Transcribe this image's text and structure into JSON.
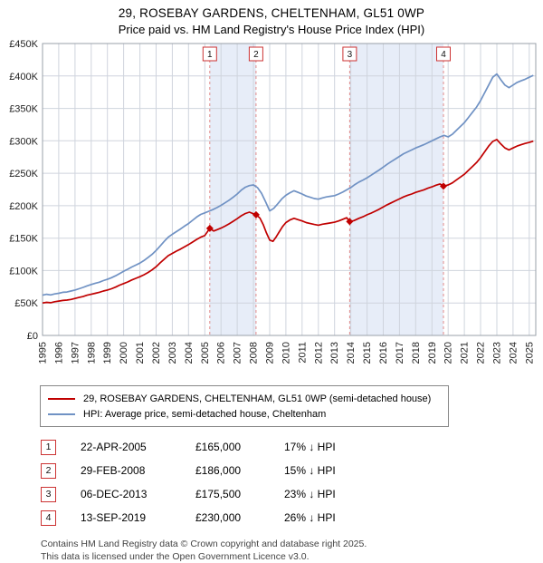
{
  "title": "29, ROSEBAY GARDENS, CHELTENHAM, GL51 0WP",
  "subtitle": "Price paid vs. HM Land Registry's House Price Index (HPI)",
  "chart_data": {
    "type": "line",
    "xlim": [
      1995,
      2025.4
    ],
    "ylim": [
      0,
      450000
    ],
    "y_step": 50000,
    "grid": true,
    "legend_position": "below",
    "y_ticks": [
      "£0",
      "£50K",
      "£100K",
      "£150K",
      "£200K",
      "£250K",
      "£300K",
      "£350K",
      "£400K",
      "£450K"
    ],
    "x_ticks": [
      1995,
      1996,
      1997,
      1998,
      1999,
      2000,
      2001,
      2002,
      2003,
      2004,
      2005,
      2006,
      2007,
      2008,
      2009,
      2010,
      2011,
      2012,
      2013,
      2014,
      2015,
      2016,
      2017,
      2018,
      2019,
      2020,
      2021,
      2022,
      2023,
      2024,
      2025
    ],
    "colors": {
      "property": "#c00000",
      "hpi": "#7092c4",
      "band": "#e7edf8",
      "grid": "#cfd4dd",
      "sale_line": "#e08a8a",
      "border": "#9aa0a8",
      "sale_box_border": "#cc3333"
    },
    "bands": [
      [
        2005.31,
        2008.16
      ],
      [
        2013.93,
        2019.71
      ]
    ],
    "series": [
      {
        "name": "29, ROSEBAY GARDENS, CHELTENHAM, GL51 0WP (semi-detached house)",
        "color_ref": "property",
        "points": [
          [
            1995.0,
            50000
          ],
          [
            1995.25,
            51000
          ],
          [
            1995.5,
            50500
          ],
          [
            1995.75,
            52000
          ],
          [
            1996.0,
            53000
          ],
          [
            1996.25,
            54000
          ],
          [
            1996.5,
            54500
          ],
          [
            1996.75,
            55500
          ],
          [
            1997.0,
            57000
          ],
          [
            1997.25,
            58500
          ],
          [
            1997.5,
            60000
          ],
          [
            1997.75,
            62000
          ],
          [
            1998.0,
            63500
          ],
          [
            1998.25,
            65000
          ],
          [
            1998.5,
            66500
          ],
          [
            1998.75,
            68500
          ],
          [
            1999.0,
            70000
          ],
          [
            1999.25,
            72000
          ],
          [
            1999.5,
            74500
          ],
          [
            1999.75,
            77500
          ],
          [
            2000.0,
            80000
          ],
          [
            2000.25,
            82500
          ],
          [
            2000.5,
            85500
          ],
          [
            2000.75,
            88000
          ],
          [
            2001.0,
            90500
          ],
          [
            2001.25,
            93500
          ],
          [
            2001.5,
            97000
          ],
          [
            2001.75,
            101000
          ],
          [
            2002.0,
            106000
          ],
          [
            2002.25,
            112000
          ],
          [
            2002.5,
            117500
          ],
          [
            2002.75,
            123000
          ],
          [
            2003.0,
            126500
          ],
          [
            2003.25,
            130000
          ],
          [
            2003.5,
            133000
          ],
          [
            2003.75,
            136500
          ],
          [
            2004.0,
            140000
          ],
          [
            2004.25,
            144000
          ],
          [
            2004.5,
            148000
          ],
          [
            2004.75,
            151500
          ],
          [
            2005.0,
            154000
          ],
          [
            2005.31,
            165000
          ],
          [
            2005.55,
            161000
          ],
          [
            2005.75,
            163000
          ],
          [
            2006.0,
            165500
          ],
          [
            2006.25,
            168500
          ],
          [
            2006.5,
            172000
          ],
          [
            2006.75,
            176000
          ],
          [
            2007.0,
            180000
          ],
          [
            2007.25,
            184500
          ],
          [
            2007.5,
            188000
          ],
          [
            2007.75,
            190000
          ],
          [
            2008.16,
            186000
          ],
          [
            2008.4,
            181000
          ],
          [
            2008.6,
            171000
          ],
          [
            2008.8,
            158000
          ],
          [
            2009.0,
            147000
          ],
          [
            2009.2,
            145000
          ],
          [
            2009.4,
            152000
          ],
          [
            2009.6,
            160000
          ],
          [
            2009.8,
            168000
          ],
          [
            2010.0,
            174000
          ],
          [
            2010.25,
            178000
          ],
          [
            2010.5,
            180500
          ],
          [
            2010.75,
            178500
          ],
          [
            2011.0,
            176500
          ],
          [
            2011.25,
            174000
          ],
          [
            2011.5,
            172500
          ],
          [
            2011.75,
            171000
          ],
          [
            2012.0,
            170000
          ],
          [
            2012.25,
            171500
          ],
          [
            2012.5,
            172500
          ],
          [
            2012.75,
            173500
          ],
          [
            2013.0,
            174500
          ],
          [
            2013.25,
            176500
          ],
          [
            2013.5,
            179000
          ],
          [
            2013.75,
            181500
          ],
          [
            2013.93,
            175500
          ],
          [
            2014.2,
            177000
          ],
          [
            2014.5,
            180500
          ],
          [
            2014.75,
            183000
          ],
          [
            2015.0,
            186000
          ],
          [
            2015.25,
            188500
          ],
          [
            2015.5,
            191500
          ],
          [
            2015.75,
            194500
          ],
          [
            2016.0,
            198000
          ],
          [
            2016.25,
            201500
          ],
          [
            2016.5,
            204500
          ],
          [
            2016.75,
            207500
          ],
          [
            2017.0,
            210500
          ],
          [
            2017.25,
            213500
          ],
          [
            2017.5,
            216000
          ],
          [
            2017.75,
            218000
          ],
          [
            2018.0,
            220500
          ],
          [
            2018.25,
            222500
          ],
          [
            2018.5,
            224500
          ],
          [
            2018.75,
            227000
          ],
          [
            2019.0,
            229000
          ],
          [
            2019.25,
            231500
          ],
          [
            2019.5,
            233500
          ],
          [
            2019.71,
            230000
          ],
          [
            2020.0,
            232000
          ],
          [
            2020.25,
            235000
          ],
          [
            2020.5,
            239500
          ],
          [
            2020.75,
            244000
          ],
          [
            2021.0,
            248500
          ],
          [
            2021.25,
            254500
          ],
          [
            2021.5,
            260500
          ],
          [
            2021.75,
            266500
          ],
          [
            2022.0,
            274000
          ],
          [
            2022.25,
            283000
          ],
          [
            2022.5,
            292000
          ],
          [
            2022.75,
            299000
          ],
          [
            2023.0,
            302000
          ],
          [
            2023.25,
            295000
          ],
          [
            2023.5,
            289000
          ],
          [
            2023.75,
            286000
          ],
          [
            2024.0,
            289000
          ],
          [
            2024.25,
            292000
          ],
          [
            2024.5,
            294000
          ],
          [
            2024.75,
            296000
          ],
          [
            2025.0,
            297500
          ],
          [
            2025.25,
            299500
          ]
        ]
      },
      {
        "name": "HPI: Average price, semi-detached house, Cheltenham",
        "color_ref": "hpi",
        "points": [
          [
            1995.0,
            62000
          ],
          [
            1995.25,
            63500
          ],
          [
            1995.5,
            62500
          ],
          [
            1995.75,
            64000
          ],
          [
            1996.0,
            65000
          ],
          [
            1996.25,
            66500
          ],
          [
            1996.5,
            67000
          ],
          [
            1996.75,
            68500
          ],
          [
            1997.0,
            70000
          ],
          [
            1997.25,
            72000
          ],
          [
            1997.5,
            74000
          ],
          [
            1997.75,
            76500
          ],
          [
            1998.0,
            78500
          ],
          [
            1998.25,
            80500
          ],
          [
            1998.5,
            82000
          ],
          [
            1998.75,
            84500
          ],
          [
            1999.0,
            86500
          ],
          [
            1999.25,
            89000
          ],
          [
            1999.5,
            92000
          ],
          [
            1999.75,
            95500
          ],
          [
            2000.0,
            99000
          ],
          [
            2000.25,
            102000
          ],
          [
            2000.5,
            105500
          ],
          [
            2000.75,
            108500
          ],
          [
            2001.0,
            111500
          ],
          [
            2001.25,
            115500
          ],
          [
            2001.5,
            120000
          ],
          [
            2001.75,
            125000
          ],
          [
            2002.0,
            131000
          ],
          [
            2002.25,
            138000
          ],
          [
            2002.5,
            145000
          ],
          [
            2002.75,
            151500
          ],
          [
            2003.0,
            156000
          ],
          [
            2003.25,
            160000
          ],
          [
            2003.5,
            164000
          ],
          [
            2003.75,
            168500
          ],
          [
            2004.0,
            172500
          ],
          [
            2004.25,
            177500
          ],
          [
            2004.5,
            182500
          ],
          [
            2004.75,
            186500
          ],
          [
            2005.0,
            189000
          ],
          [
            2005.25,
            191500
          ],
          [
            2005.5,
            194000
          ],
          [
            2005.75,
            197000
          ],
          [
            2006.0,
            200500
          ],
          [
            2006.25,
            204500
          ],
          [
            2006.5,
            208500
          ],
          [
            2006.75,
            213000
          ],
          [
            2007.0,
            218000
          ],
          [
            2007.25,
            224000
          ],
          [
            2007.5,
            228500
          ],
          [
            2007.75,
            231000
          ],
          [
            2008.0,
            232000
          ],
          [
            2008.25,
            228000
          ],
          [
            2008.5,
            219000
          ],
          [
            2008.75,
            206000
          ],
          [
            2009.0,
            192000
          ],
          [
            2009.25,
            196000
          ],
          [
            2009.5,
            203000
          ],
          [
            2009.75,
            210500
          ],
          [
            2010.0,
            216000
          ],
          [
            2010.25,
            220000
          ],
          [
            2010.5,
            223000
          ],
          [
            2010.75,
            220500
          ],
          [
            2011.0,
            218000
          ],
          [
            2011.25,
            215000
          ],
          [
            2011.5,
            213000
          ],
          [
            2011.75,
            211000
          ],
          [
            2012.0,
            210000
          ],
          [
            2012.25,
            212000
          ],
          [
            2012.5,
            213500
          ],
          [
            2012.75,
            214500
          ],
          [
            2013.0,
            215500
          ],
          [
            2013.25,
            218000
          ],
          [
            2013.5,
            221000
          ],
          [
            2013.75,
            224500
          ],
          [
            2014.0,
            228000
          ],
          [
            2014.25,
            232500
          ],
          [
            2014.5,
            236500
          ],
          [
            2014.75,
            239500
          ],
          [
            2015.0,
            243000
          ],
          [
            2015.25,
            247000
          ],
          [
            2015.5,
            251000
          ],
          [
            2015.75,
            255000
          ],
          [
            2016.0,
            259500
          ],
          [
            2016.25,
            264000
          ],
          [
            2016.5,
            268000
          ],
          [
            2016.75,
            272000
          ],
          [
            2017.0,
            276000
          ],
          [
            2017.25,
            280000
          ],
          [
            2017.5,
            283000
          ],
          [
            2017.75,
            286000
          ],
          [
            2018.0,
            289000
          ],
          [
            2018.25,
            291500
          ],
          [
            2018.5,
            294000
          ],
          [
            2018.75,
            297000
          ],
          [
            2019.0,
            300000
          ],
          [
            2019.25,
            303000
          ],
          [
            2019.5,
            306000
          ],
          [
            2019.75,
            308500
          ],
          [
            2020.0,
            306000
          ],
          [
            2020.25,
            310000
          ],
          [
            2020.5,
            316000
          ],
          [
            2020.75,
            322000
          ],
          [
            2021.0,
            328000
          ],
          [
            2021.25,
            336000
          ],
          [
            2021.5,
            344000
          ],
          [
            2021.75,
            352000
          ],
          [
            2022.0,
            362000
          ],
          [
            2022.25,
            374000
          ],
          [
            2022.5,
            386000
          ],
          [
            2022.75,
            398000
          ],
          [
            2023.0,
            403000
          ],
          [
            2023.25,
            394000
          ],
          [
            2023.5,
            386000
          ],
          [
            2023.75,
            382000
          ],
          [
            2024.0,
            386000
          ],
          [
            2024.25,
            390000
          ],
          [
            2024.5,
            392500
          ],
          [
            2024.75,
            395000
          ],
          [
            2025.0,
            398000
          ],
          [
            2025.25,
            401000
          ]
        ]
      }
    ]
  },
  "legend": {
    "items": [
      {
        "label": "29, ROSEBAY GARDENS, CHELTENHAM, GL51 0WP (semi-detached house)",
        "color": "#c00000"
      },
      {
        "label": "HPI: Average price, semi-detached house, Cheltenham",
        "color": "#7092c4"
      }
    ]
  },
  "transactions": [
    {
      "num": "1",
      "x": 2005.31,
      "value": 165000,
      "date": "22-APR-2005",
      "price": "£165,000",
      "vs_hpi": "17% ↓ HPI"
    },
    {
      "num": "2",
      "x": 2008.16,
      "value": 186000,
      "date": "29-FEB-2008",
      "price": "£186,000",
      "vs_hpi": "15% ↓ HPI"
    },
    {
      "num": "3",
      "x": 2013.93,
      "value": 175500,
      "date": "06-DEC-2013",
      "price": "£175,500",
      "vs_hpi": "23% ↓ HPI"
    },
    {
      "num": "4",
      "x": 2019.71,
      "value": 230000,
      "date": "13-SEP-2019",
      "price": "£230,000",
      "vs_hpi": "26% ↓ HPI"
    }
  ],
  "footer": {
    "line1": "Contains HM Land Registry data © Crown copyright and database right 2025.",
    "line2": "This data is licensed under the Open Government Licence v3.0."
  }
}
